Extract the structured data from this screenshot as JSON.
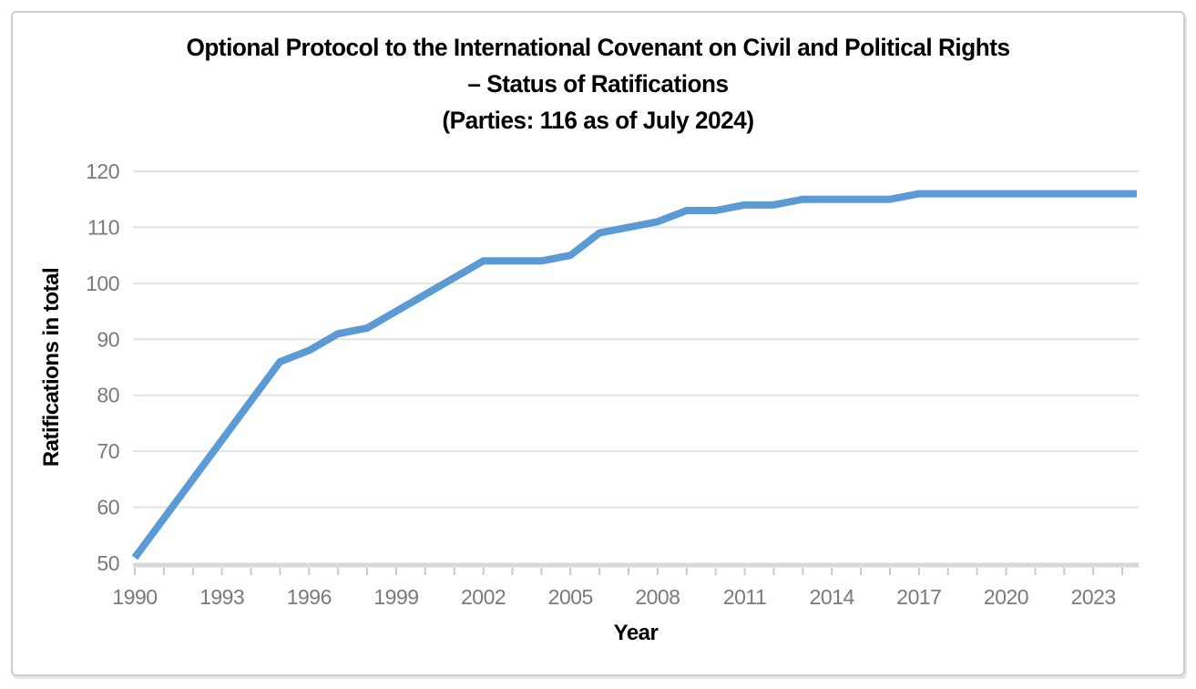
{
  "page": {
    "background_color": "#ffffff",
    "frame_border_color": "#cccccc"
  },
  "title": {
    "line1": "Optional Protocol to the International Covenant on Civil and Political Rights",
    "line2": "– Status of Ratifications",
    "line3": "(Parties: 116 as of July 2024)"
  },
  "chart_data": {
    "type": "line",
    "title": "Optional Protocol to the International Covenant on Civil and Political Rights – Status of Ratifications (Parties: 116 as of July 2024)",
    "xlabel": "Year",
    "ylabel": "Ratifications in total",
    "x": [
      1990,
      1991,
      1992,
      1993,
      1994,
      1995,
      1996,
      1997,
      1998,
      1999,
      2000,
      2001,
      2002,
      2003,
      2004,
      2005,
      2006,
      2007,
      2008,
      2009,
      2010,
      2011,
      2012,
      2013,
      2014,
      2015,
      2016,
      2017,
      2018,
      2019,
      2020,
      2021,
      2022,
      2023,
      2024
    ],
    "values": [
      51,
      58,
      65,
      72,
      79,
      86,
      88,
      91,
      92,
      95,
      98,
      101,
      104,
      104,
      104,
      105,
      109,
      110,
      111,
      113,
      113,
      114,
      114,
      115,
      115,
      115,
      115,
      116,
      116,
      116,
      116,
      116,
      116,
      116,
      116
    ],
    "final_value": 116,
    "xlim": [
      1990,
      2024.5
    ],
    "ylim": [
      50,
      120
    ],
    "y_ticks": [
      50,
      60,
      70,
      80,
      90,
      100,
      110,
      120
    ],
    "x_tick_labels": [
      "1990",
      "1993",
      "1996",
      "1999",
      "2002",
      "2005",
      "2008",
      "2011",
      "2014",
      "2017",
      "2020",
      "2023"
    ],
    "x_minor_tick_years": [
      1990,
      2024
    ],
    "line_extends_to_x": 2024.5,
    "grid": true,
    "legend": "none",
    "line_color": "#5B9BD5",
    "line_width": 8,
    "gridline_color": "#E2E2E2",
    "axis_line_color": "#D8D8D8",
    "tick_mark_color": "#C9C9C9",
    "tick_label_color": "#7a7a7a",
    "title_color": "#000000"
  }
}
